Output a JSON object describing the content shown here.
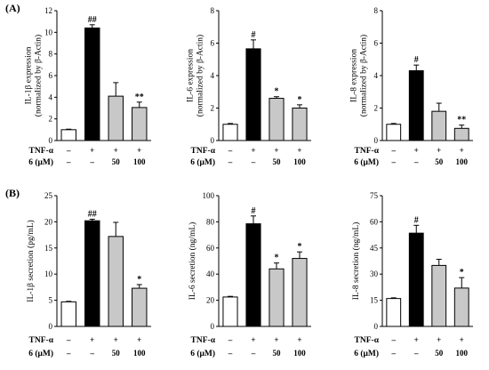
{
  "panel_labels": [
    "(A)",
    "(B)"
  ],
  "conditions": {
    "labels": [
      "TNF-α",
      "6 (μM)"
    ],
    "tnf": [
      "–",
      "+",
      "+",
      "+"
    ],
    "dose": [
      "–",
      "–",
      "50",
      "100"
    ]
  },
  "colors": {
    "control": "#ffffff",
    "tnf": "#000000",
    "treated": "#c8c8c8",
    "stroke": "#000000"
  },
  "chart_data": [
    {
      "type": "bar",
      "panel": "A",
      "ylabel": [
        "IL-1β expression",
        "(normalized by β-Actin)"
      ],
      "ylim": [
        0,
        12
      ],
      "yticks": [
        0,
        2,
        4,
        6,
        8,
        10,
        12
      ],
      "values": [
        1.0,
        10.4,
        4.1,
        3.05
      ],
      "errors": [
        0.05,
        0.3,
        1.25,
        0.5
      ],
      "annotations": [
        "",
        "##",
        "",
        "**"
      ]
    },
    {
      "type": "bar",
      "panel": "A",
      "ylabel": [
        "IL-6 expression",
        "(normalized by β-Actin)"
      ],
      "ylim": [
        0,
        8
      ],
      "yticks": [
        0,
        2,
        4,
        6,
        8
      ],
      "values": [
        1.0,
        5.65,
        2.6,
        2.0
      ],
      "errors": [
        0.05,
        0.55,
        0.1,
        0.2
      ],
      "annotations": [
        "",
        "#",
        "*",
        "*"
      ]
    },
    {
      "type": "bar",
      "panel": "A",
      "ylabel": [
        "IL-8 expression",
        "(normalized by β-Actin)"
      ],
      "ylim": [
        0,
        8
      ],
      "yticks": [
        0,
        2,
        4,
        6,
        8
      ],
      "values": [
        1.0,
        4.3,
        1.8,
        0.75
      ],
      "errors": [
        0.05,
        0.35,
        0.5,
        0.2
      ],
      "annotations": [
        "",
        "#",
        "",
        "**"
      ]
    },
    {
      "type": "bar",
      "panel": "B",
      "ylabel": [
        "IL-1β secretion (pg/mL)"
      ],
      "ylim": [
        0,
        25
      ],
      "yticks": [
        0,
        5,
        10,
        15,
        20,
        25
      ],
      "values": [
        4.7,
        20.2,
        17.2,
        7.3
      ],
      "errors": [
        0.1,
        0.3,
        2.7,
        0.7
      ],
      "annotations": [
        "",
        "##",
        "",
        "*"
      ]
    },
    {
      "type": "bar",
      "panel": "B",
      "ylabel": [
        "IL-6 secretion (ng/mL)"
      ],
      "ylim": [
        0,
        100
      ],
      "yticks": [
        0,
        20,
        40,
        60,
        80,
        100
      ],
      "values": [
        22.5,
        78.5,
        44.0,
        52.0
      ],
      "errors": [
        0.5,
        6.0,
        4.5,
        5.0
      ],
      "annotations": [
        "",
        "#",
        "*",
        "*"
      ]
    },
    {
      "type": "bar",
      "panel": "B",
      "ylabel": [
        "IL-8 secretion (ng/mL)"
      ],
      "ylim": [
        0,
        75
      ],
      "yticks": [
        0,
        15,
        30,
        45,
        60,
        75
      ],
      "values": [
        16.0,
        53.5,
        35.0,
        22.0
      ],
      "errors": [
        0.4,
        4.5,
        3.5,
        6.0
      ],
      "annotations": [
        "",
        "#",
        "",
        "*"
      ]
    }
  ]
}
